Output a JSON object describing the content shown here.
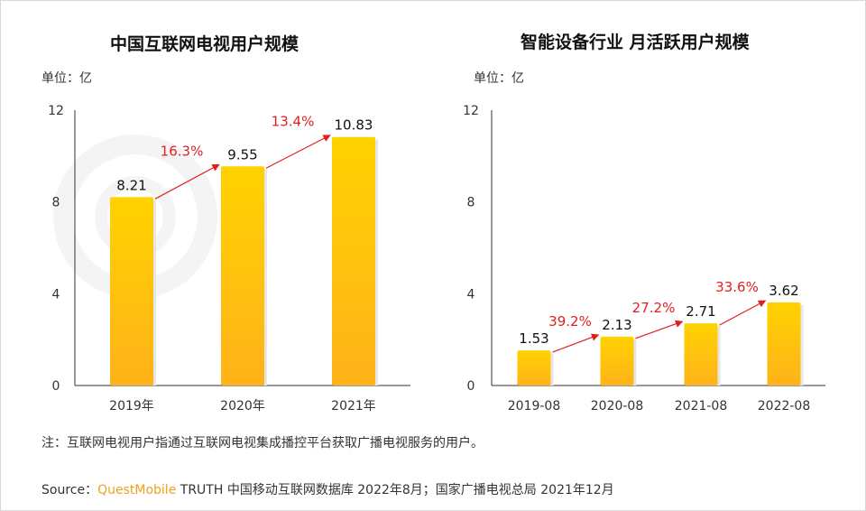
{
  "watermark": "QUESTMOBILE",
  "colors": {
    "bar_top": "#ffd200",
    "bar_bottom": "#ffb21a",
    "growth": "#e02020",
    "axis": "#333333",
    "brand": "#f0a020"
  },
  "chart_data": [
    {
      "type": "bar",
      "title": "中国互联网电视用户规模",
      "unit_label": "单位：亿",
      "categories": [
        "2019年",
        "2020年",
        "2021年"
      ],
      "values": [
        8.21,
        9.55,
        10.83
      ],
      "value_labels": [
        "8.21",
        "9.55",
        "10.83"
      ],
      "growth_labels": [
        "16.3%",
        "13.4%"
      ],
      "yticks": [
        "0",
        "4",
        "8",
        "12"
      ],
      "ylim": [
        0,
        12
      ],
      "grid": false
    },
    {
      "type": "bar",
      "title": "智能设备行业 月活跃用户规模",
      "unit_label": "单位：亿",
      "categories": [
        "2019-08",
        "2020-08",
        "2021-08",
        "2022-08"
      ],
      "values": [
        1.53,
        2.13,
        2.71,
        3.62
      ],
      "value_labels": [
        "1.53",
        "2.13",
        "2.71",
        "3.62"
      ],
      "growth_labels": [
        "39.2%",
        "27.2%",
        "33.6%"
      ],
      "yticks": [
        "0",
        "4",
        "8",
        "12"
      ],
      "ylim": [
        0,
        12
      ],
      "grid": false
    }
  ],
  "note": "注：互联网电视用户指通过互联网电视集成播控平台获取广播电视服务的用户。",
  "source": {
    "prefix": "Source：",
    "brand": "QuestMobile",
    "text": " TRUTH 中国移动互联网数据库 2022年8月；国家广播电视总局 2021年12月"
  }
}
